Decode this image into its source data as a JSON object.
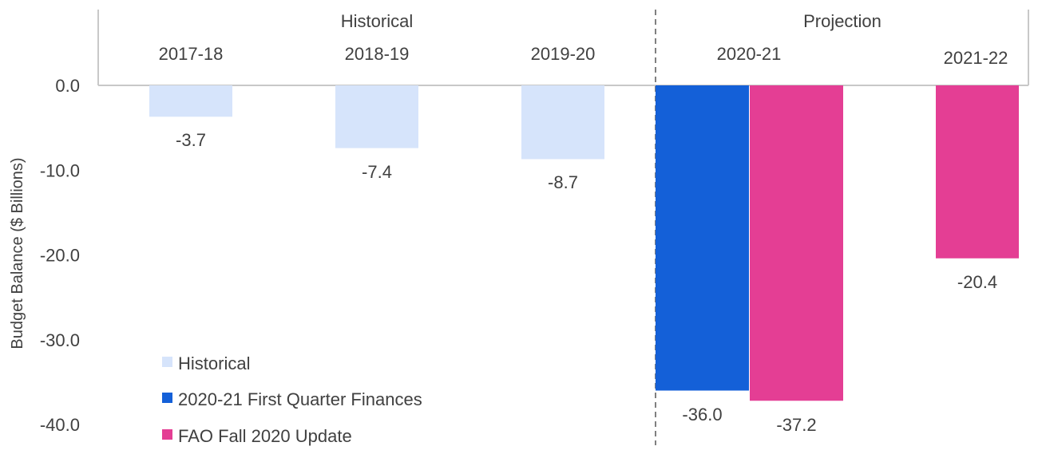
{
  "chart_data": {
    "type": "bar",
    "ylabel": "Budget Balance ($ Billions)",
    "ylim": [
      -40,
      0
    ],
    "yticks": [
      "0.0",
      "-10.0",
      "-20.0",
      "-30.0",
      "-40.0"
    ],
    "ytick_values": [
      0,
      -10,
      -20,
      -30,
      -40
    ],
    "sections": [
      {
        "label": "Historical",
        "categories": [
          "2017-18",
          "2018-19",
          "2019-20"
        ]
      },
      {
        "label": "Projection",
        "categories": [
          "2020-21",
          "2021-22"
        ]
      }
    ],
    "categories": [
      "2017-18",
      "2018-19",
      "2019-20",
      "2020-21",
      "2021-22"
    ],
    "series": [
      {
        "name": "Historical",
        "color": "#d6e4fb",
        "values": [
          -3.7,
          -7.4,
          -8.7,
          null,
          null
        ],
        "labels": [
          "-3.7",
          "-7.4",
          "-8.7",
          null,
          null
        ]
      },
      {
        "name": "2020-21 First Quarter Finances",
        "color": "#1460d8",
        "values": [
          null,
          null,
          null,
          -36.0,
          null
        ],
        "labels": [
          null,
          null,
          null,
          "-36.0",
          null
        ]
      },
      {
        "name": "FAO Fall 2020 Update",
        "color": "#e43e94",
        "values": [
          null,
          null,
          null,
          -37.2,
          -20.4
        ],
        "labels": [
          null,
          null,
          null,
          "-37.2",
          "-20.4"
        ]
      }
    ],
    "legend_position": "bottom-left",
    "grid": false
  }
}
